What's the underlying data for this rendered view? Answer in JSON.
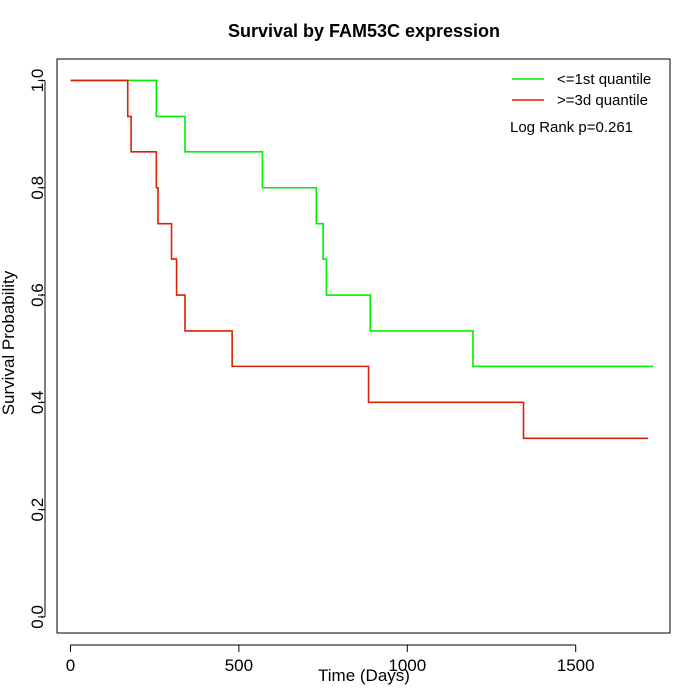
{
  "chart_data": {
    "type": "line",
    "title": "Survival by FAM53C expression",
    "xlabel": "Time (Days)",
    "ylabel": "Survival Probability",
    "xlim": [
      -40,
      1780
    ],
    "ylim": [
      -0.03,
      1.04
    ],
    "xticks": [
      0,
      500,
      1000,
      1500
    ],
    "yticks": [
      0.0,
      0.2,
      0.4,
      0.6,
      0.8,
      1.0
    ],
    "xtick_labels": [
      "0",
      "500",
      "1000",
      "1500"
    ],
    "ytick_labels": [
      "0.0",
      "0.2",
      "0.4",
      "0.6",
      "0.8",
      "1.0"
    ],
    "step": true,
    "legend_position": "top-right",
    "annotation": "Log Rank p=0.261",
    "series": [
      {
        "name": "<=1st quantile",
        "color": "#00ee00",
        "x": [
          0,
          255,
          340,
          570,
          730,
          750,
          760,
          890,
          1195,
          1730
        ],
        "y": [
          1.0,
          0.933,
          0.867,
          0.8,
          0.733,
          0.667,
          0.6,
          0.533,
          0.467,
          0.467
        ]
      },
      {
        "name": ">=3d quantile",
        "color": "#dd2200",
        "x": [
          0,
          170,
          180,
          255,
          260,
          300,
          315,
          325,
          340,
          480,
          885,
          1345,
          1715
        ],
        "y": [
          1.0,
          0.933,
          0.867,
          0.8,
          0.733,
          0.667,
          0.6,
          0.6,
          0.533,
          0.467,
          0.4,
          0.333,
          0.333
        ]
      }
    ]
  }
}
